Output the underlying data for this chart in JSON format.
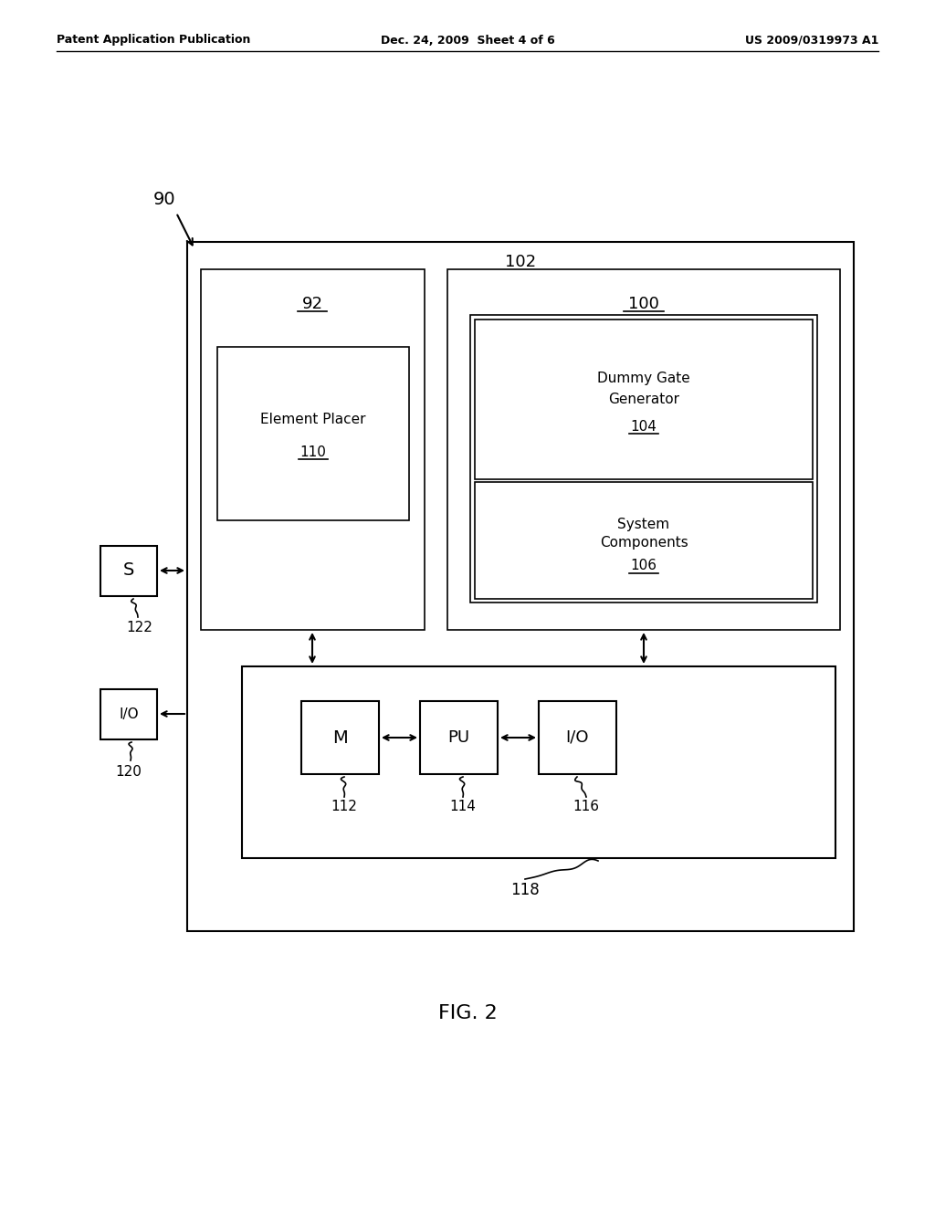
{
  "bg_color": "#ffffff",
  "header_left": "Patent Application Publication",
  "header_mid": "Dec. 24, 2009  Sheet 4 of 6",
  "header_right": "US 2009/0319973 A1",
  "fig_label": "FIG. 2",
  "label_90": "90",
  "label_102": "102",
  "label_92": "92",
  "label_100": "100",
  "label_110": "110",
  "label_104": "104",
  "label_106": "106",
  "label_118": "118",
  "label_112": "112",
  "label_114": "114",
  "label_116": "116",
  "label_120": "120",
  "label_122": "122",
  "text_element_placer": "Element Placer",
  "text_dummy_gate": "Dummy Gate\nGenerator",
  "text_system_components": "System\nComponents",
  "text_M": "M",
  "text_PU": "PU",
  "text_IO_inner": "I/O",
  "text_S": "S",
  "text_IO_outer": "I/O"
}
